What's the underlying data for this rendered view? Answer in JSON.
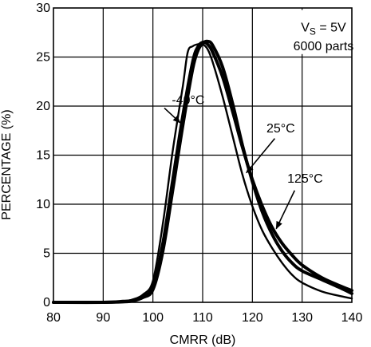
{
  "chart_data": {
    "type": "line",
    "xlabel": "CMRR (dB)",
    "ylabel": "PERCENTAGE (%)",
    "xlim": [
      80,
      140
    ],
    "ylim": [
      0,
      30
    ],
    "xticks": [
      80,
      90,
      100,
      110,
      120,
      130,
      140
    ],
    "yticks": [
      0,
      5,
      10,
      15,
      20,
      25,
      30
    ],
    "grid": true,
    "legend_box": {
      "line1_main": "V",
      "line1_sub": "S",
      "line1_rest": " = 5V",
      "line2": "6000 parts",
      "placement": "top-right"
    },
    "series": [
      {
        "name": "-40°C",
        "style": "thin",
        "x": [
          80,
          90,
          94,
          96,
          98,
          100,
          102,
          104,
          106,
          107,
          108,
          109,
          110,
          111,
          112,
          114,
          116,
          118,
          120,
          122,
          124,
          126,
          128,
          130,
          134,
          138,
          140
        ],
        "y": [
          0,
          0,
          0.1,
          0.3,
          0.8,
          2.2,
          8.0,
          15.5,
          22.0,
          25.5,
          26.1,
          26.3,
          26.3,
          25.8,
          24.5,
          21.0,
          17.0,
          13.0,
          9.8,
          7.3,
          5.5,
          4.0,
          2.8,
          2.0,
          1.1,
          0.6,
          0.4
        ]
      },
      {
        "name": "25°C",
        "style": "thick",
        "x": [
          80,
          90,
          94,
          96,
          98,
          100,
          102,
          104,
          106,
          108,
          109,
          110,
          111,
          112,
          114,
          116,
          118,
          120,
          122,
          124,
          126,
          128,
          130,
          134,
          138,
          140
        ],
        "y": [
          0,
          0,
          0.1,
          0.2,
          0.6,
          1.6,
          6.0,
          12.5,
          19.0,
          24.5,
          26.0,
          26.5,
          26.3,
          25.5,
          23.0,
          19.5,
          15.8,
          12.5,
          9.8,
          7.6,
          6.0,
          4.8,
          3.8,
          2.5,
          1.6,
          1.2
        ]
      },
      {
        "name": "125°C",
        "style": "thick",
        "x": [
          80,
          90,
          94,
          96,
          98,
          100,
          102,
          104,
          106,
          108,
          109,
          110,
          111,
          112,
          114,
          116,
          118,
          120,
          122,
          124,
          126,
          128,
          130,
          134,
          138,
          140
        ],
        "y": [
          0,
          0,
          0.05,
          0.15,
          0.5,
          1.3,
          5.2,
          11.5,
          18.0,
          23.8,
          25.6,
          26.4,
          26.6,
          26.2,
          24.0,
          20.3,
          16.0,
          12.3,
          9.2,
          6.9,
          5.2,
          4.0,
          3.2,
          2.3,
          1.4,
          0.9
        ]
      }
    ],
    "annotations": [
      {
        "text": "-40°C",
        "label_at": [
          107.1,
          20.2
        ],
        "arrow_to": [
          105.5,
          18.3
        ],
        "arrow_from": [
          102.3,
          19.8
        ]
      },
      {
        "text": "25°C",
        "label_at": [
          125.7,
          17.3
        ],
        "arrow_to": [
          118.8,
          13.2
        ],
        "arrow_from": [
          124.5,
          16.7
        ]
      },
      {
        "text": "125°C",
        "label_at": [
          130.6,
          12.2
        ],
        "arrow_to": [
          124.8,
          7.5
        ],
        "arrow_from": [
          128.5,
          11.4
        ]
      }
    ]
  }
}
